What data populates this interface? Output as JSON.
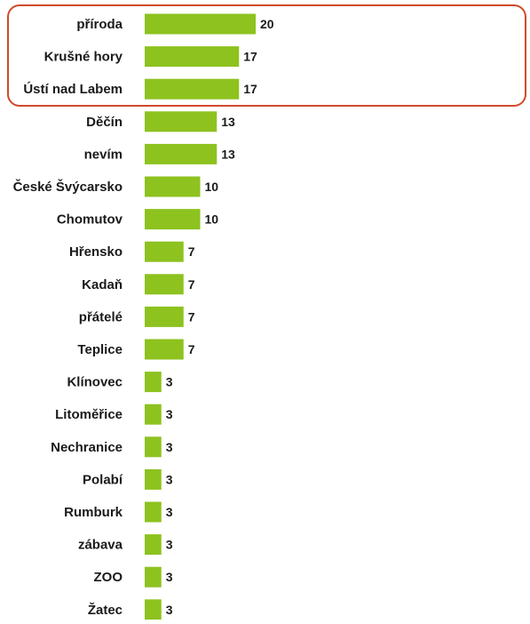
{
  "chart_data": {
    "type": "bar",
    "orientation": "horizontal",
    "categories": [
      "příroda",
      "Krušné hory",
      "Ústí nad Labem",
      "Děčín",
      "nevím",
      "České Švýcarsko",
      "Chomutov",
      "Hřensko",
      "Kadaň",
      "přátelé",
      "Teplice",
      "Klínovec",
      "Litoměřice",
      "Nechranice",
      "Polabí",
      "Rumburk",
      "zábava",
      "ZOO",
      "Žatec"
    ],
    "values": [
      20,
      17,
      17,
      13,
      13,
      10,
      10,
      7,
      7,
      7,
      7,
      3,
      3,
      3,
      3,
      3,
      3,
      3,
      3
    ],
    "value_labels": [
      "20",
      "17",
      "17",
      "13",
      "13",
      "10",
      "10",
      "7",
      "7",
      "7",
      "7",
      "3",
      "3",
      "3",
      "3",
      "3",
      "3",
      "3",
      "3"
    ],
    "title": "",
    "xlabel": "",
    "ylabel": "",
    "xlim": [
      0,
      20
    ],
    "grid": false,
    "highlighted_categories": [
      0,
      1,
      2
    ],
    "colors": {
      "bar": "#8dc21f",
      "highlight_border": "#d04a2a",
      "text": "#1a1a1a"
    }
  }
}
